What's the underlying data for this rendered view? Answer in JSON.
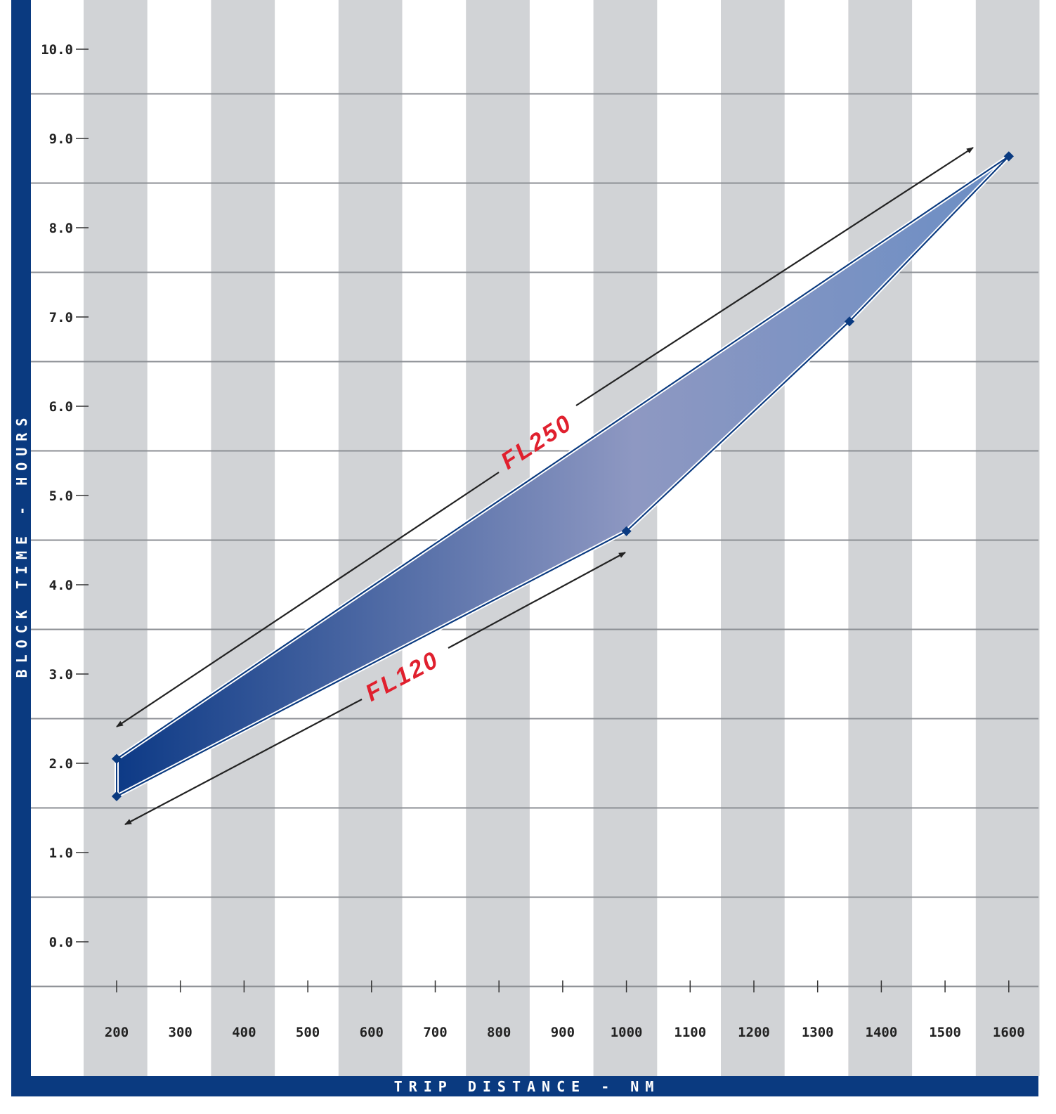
{
  "chart_data": {
    "type": "area",
    "xlabel": "TRIP DISTANCE - NM",
    "ylabel": "BLOCK TIME - HOURS",
    "x_ticks": [
      "200",
      "300",
      "400",
      "500",
      "600",
      "700",
      "800",
      "900",
      "1000",
      "1100",
      "1200",
      "1300",
      "1400",
      "1500",
      "1600"
    ],
    "y_ticks": [
      "0.0",
      "1.0",
      "2.0",
      "3.0",
      "4.0",
      "5.0",
      "6.0",
      "7.0",
      "8.0",
      "9.0",
      "10.0"
    ],
    "xlim": [
      200,
      1600
    ],
    "ylim": [
      0,
      10
    ],
    "grid": "horizontal lines and alternating vertical bands",
    "series": [
      {
        "name": "FL250",
        "x": [
          200,
          1600
        ],
        "y": [
          2.05,
          8.8
        ]
      },
      {
        "name": "FL120",
        "x": [
          200,
          1000,
          1350,
          1600
        ],
        "y": [
          1.63,
          4.6,
          6.95,
          8.8
        ]
      }
    ],
    "annotations": [
      "FL250",
      "FL120"
    ],
    "colors": {
      "frame": "#0a3a80",
      "band": "#d1d3d6",
      "gridline": "#8c8f94",
      "fill_start": "#0d3a86",
      "fill_mid": "#8e98c2",
      "fill_end": "#6b8ec4",
      "annotation": "#e0202e",
      "marker": "#0a3a80"
    }
  }
}
